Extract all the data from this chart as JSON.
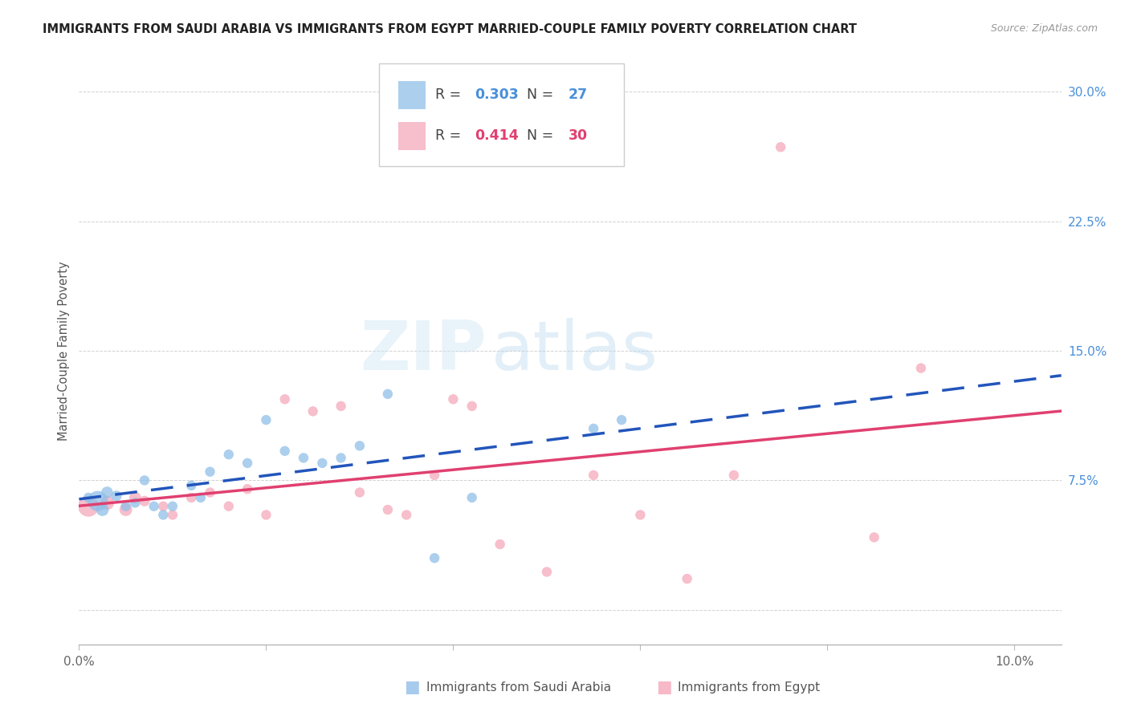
{
  "title": "IMMIGRANTS FROM SAUDI ARABIA VS IMMIGRANTS FROM EGYPT MARRIED-COUPLE FAMILY POVERTY CORRELATION CHART",
  "source": "Source: ZipAtlas.com",
  "ylabel": "Married-Couple Family Poverty",
  "xlim": [
    0.0,
    0.105
  ],
  "ylim": [
    -0.02,
    0.32
  ],
  "yticks": [
    0.0,
    0.075,
    0.15,
    0.225,
    0.3
  ],
  "ytick_labels": [
    "",
    "7.5%",
    "15.0%",
    "22.5%",
    "30.0%"
  ],
  "xticks": [
    0.0,
    0.02,
    0.04,
    0.06,
    0.08,
    0.1
  ],
  "xtick_labels": [
    "0.0%",
    "",
    "",
    "",
    "",
    "10.0%"
  ],
  "legend_R_saudi": "0.303",
  "legend_N_saudi": "27",
  "legend_R_egypt": "0.414",
  "legend_N_egypt": "30",
  "saudi_color": "#91bfe8",
  "egypt_color": "#f5a8ba",
  "saudi_line_color": "#2255bb",
  "egypt_line_color": "#e04070",
  "watermark_zip": "ZIP",
  "watermark_atlas": "atlas",
  "saudi_x": [
    0.001,
    0.002,
    0.0025,
    0.003,
    0.004,
    0.005,
    0.006,
    0.007,
    0.008,
    0.009,
    0.01,
    0.012,
    0.013,
    0.014,
    0.016,
    0.018,
    0.02,
    0.022,
    0.024,
    0.026,
    0.028,
    0.03,
    0.033,
    0.038,
    0.042,
    0.055,
    0.058
  ],
  "saudi_y": [
    0.065,
    0.063,
    0.058,
    0.068,
    0.066,
    0.06,
    0.062,
    0.075,
    0.06,
    0.055,
    0.06,
    0.072,
    0.065,
    0.08,
    0.09,
    0.085,
    0.11,
    0.092,
    0.088,
    0.085,
    0.088,
    0.095,
    0.125,
    0.03,
    0.065,
    0.105,
    0.11
  ],
  "saudi_size": [
    80,
    330,
    130,
    110,
    90,
    80,
    80,
    80,
    80,
    80,
    80,
    80,
    80,
    80,
    80,
    80,
    80,
    80,
    80,
    80,
    80,
    80,
    80,
    80,
    80,
    80,
    80
  ],
  "egypt_x": [
    0.001,
    0.003,
    0.005,
    0.006,
    0.007,
    0.009,
    0.01,
    0.012,
    0.014,
    0.016,
    0.018,
    0.02,
    0.022,
    0.025,
    0.028,
    0.03,
    0.033,
    0.035,
    0.038,
    0.04,
    0.042,
    0.045,
    0.05,
    0.055,
    0.06,
    0.065,
    0.07,
    0.075,
    0.085,
    0.09
  ],
  "egypt_y": [
    0.06,
    0.062,
    0.058,
    0.065,
    0.063,
    0.06,
    0.055,
    0.065,
    0.068,
    0.06,
    0.07,
    0.055,
    0.122,
    0.115,
    0.118,
    0.068,
    0.058,
    0.055,
    0.078,
    0.122,
    0.118,
    0.038,
    0.022,
    0.078,
    0.055,
    0.018,
    0.078,
    0.268,
    0.042,
    0.14
  ],
  "egypt_size": [
    350,
    160,
    130,
    110,
    90,
    80,
    80,
    80,
    80,
    80,
    80,
    80,
    80,
    80,
    80,
    80,
    80,
    80,
    80,
    80,
    80,
    80,
    80,
    80,
    80,
    80,
    80,
    80,
    80,
    80
  ]
}
